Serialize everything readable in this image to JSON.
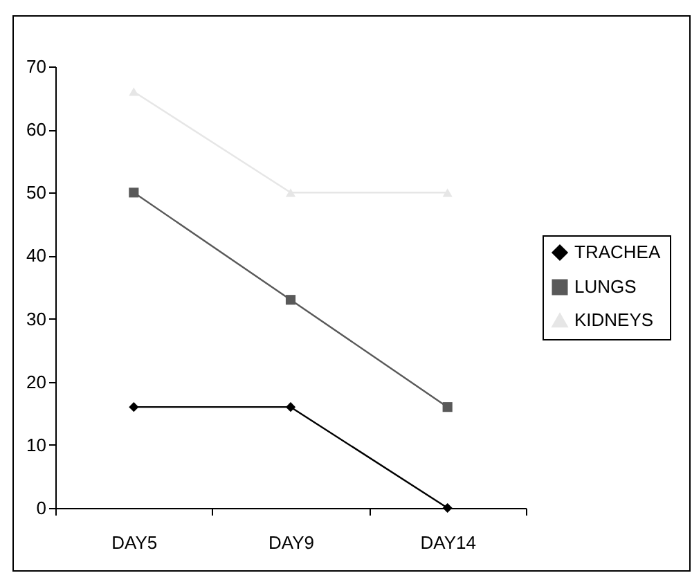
{
  "chart_data": {
    "type": "line",
    "categories": [
      "DAY5",
      "DAY9",
      "DAY14"
    ],
    "series": [
      {
        "name": "TRACHEA",
        "color": "#000000",
        "marker": "diamond",
        "values": [
          16,
          16,
          0
        ]
      },
      {
        "name": "LUNGS",
        "color": "#595959",
        "marker": "square",
        "values": [
          50,
          33,
          16
        ]
      },
      {
        "name": "KIDNEYS",
        "color": "#e6e6e6",
        "marker": "triangle",
        "values": [
          66,
          50,
          50
        ]
      }
    ],
    "ylim": [
      0,
      70
    ],
    "yticks": [
      0,
      10,
      20,
      30,
      40,
      50,
      60,
      70
    ],
    "grid": false,
    "legend": "right"
  }
}
